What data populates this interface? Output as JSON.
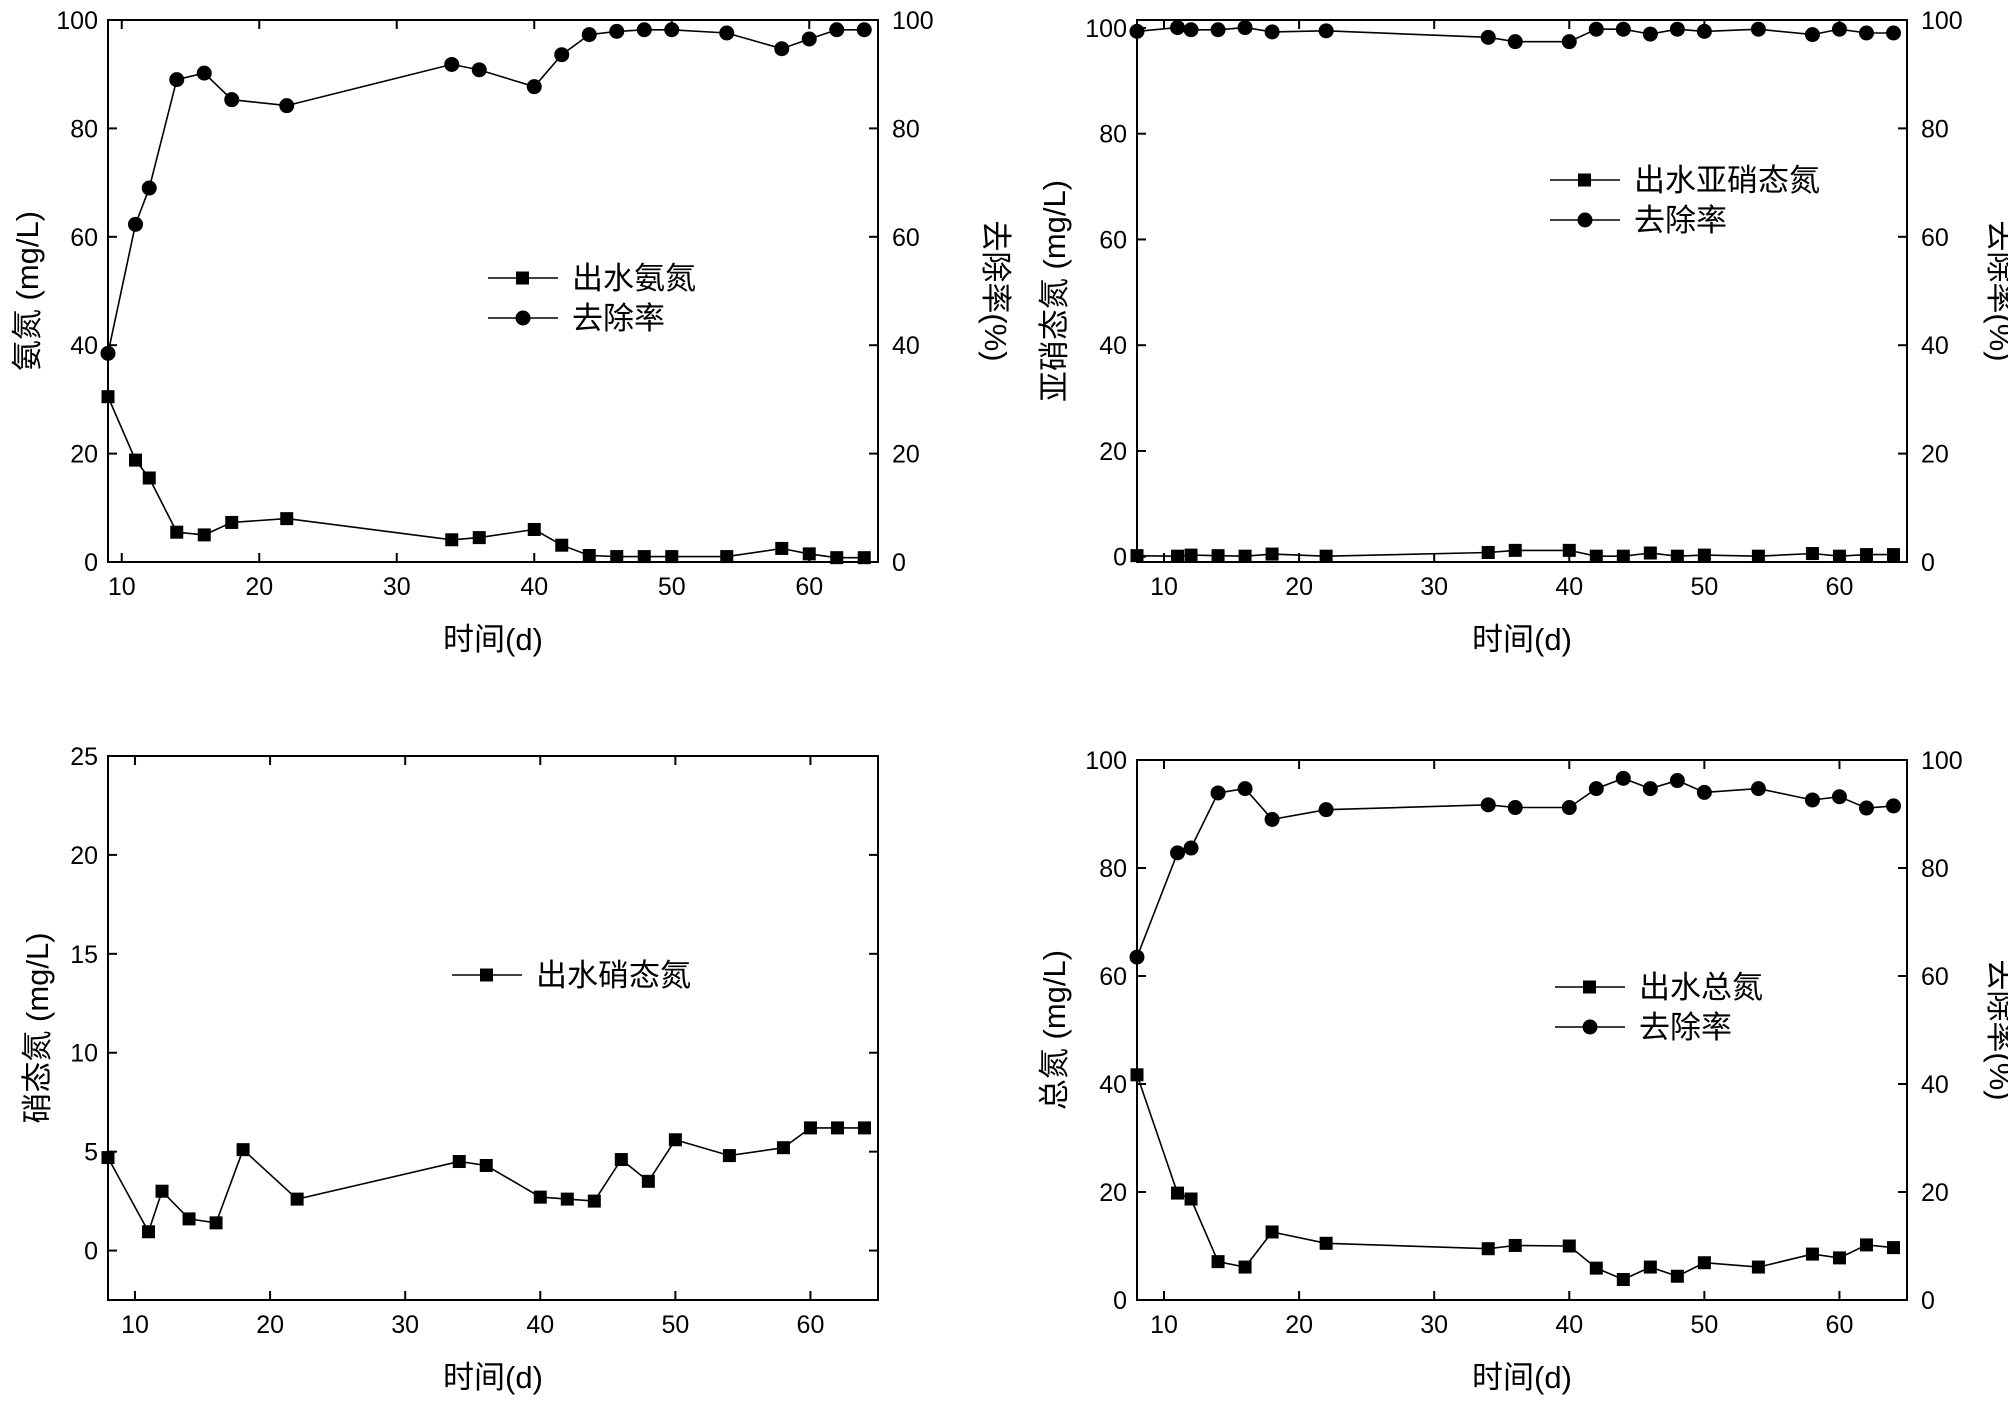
{
  "chart_data": [
    {
      "type": "line",
      "xlabel": "时间(d)",
      "ylabel": "氨氮 (mg/L)",
      "y2label": "去除率(%)",
      "xlim": [
        9,
        65
      ],
      "ylim": [
        0,
        100
      ],
      "y2lim": [
        0,
        100
      ],
      "xticks": [
        10,
        20,
        30,
        40,
        50,
        60
      ],
      "yticks": [
        0,
        20,
        40,
        60,
        80,
        100
      ],
      "y2ticks": [
        0,
        20,
        40,
        60,
        80,
        100
      ],
      "legend_position": "center",
      "series": [
        {
          "name": "出水氨氮",
          "marker": "square",
          "axis": "left",
          "x": [
            9,
            11,
            12,
            14,
            16,
            18,
            22,
            34,
            36,
            40,
            42,
            44,
            46,
            48,
            50,
            54,
            58,
            60,
            62,
            64
          ],
          "y": [
            30.5,
            18.8,
            15.5,
            5.5,
            5.0,
            7.3,
            8.0,
            4.1,
            4.5,
            6.0,
            3.1,
            1.2,
            1.0,
            1.0,
            1.0,
            1.0,
            2.5,
            1.5,
            0.8,
            0.8
          ]
        },
        {
          "name": "去除率",
          "marker": "circle",
          "axis": "right",
          "x": [
            9,
            11,
            12,
            14,
            16,
            18,
            22,
            34,
            36,
            40,
            42,
            44,
            46,
            48,
            50,
            54,
            58,
            60,
            62,
            64
          ],
          "y": [
            38.5,
            62.3,
            69.0,
            89.0,
            90.2,
            85.3,
            84.2,
            91.8,
            90.8,
            87.7,
            93.6,
            97.3,
            97.9,
            98.2,
            98.2,
            97.6,
            94.7,
            96.5,
            98.2,
            98.2
          ]
        }
      ]
    },
    {
      "type": "line",
      "xlabel": "时间(d)",
      "ylabel": "亚硝态氮 (mg/L)",
      "y2label": "去除率(%)",
      "xlim": [
        8,
        65
      ],
      "ylim": [
        -1,
        101.5
      ],
      "y2lim": [
        0,
        100
      ],
      "xticks": [
        10,
        20,
        30,
        40,
        50,
        60
      ],
      "yticks": [
        0,
        20,
        40,
        60,
        80,
        100
      ],
      "y2ticks": [
        0,
        20,
        40,
        60,
        80,
        100
      ],
      "legend_position": "upper-right",
      "series": [
        {
          "name": "出水亚硝态氮",
          "marker": "square",
          "axis": "left",
          "x": [
            8,
            11,
            12,
            14,
            16,
            18,
            22,
            34,
            36,
            40,
            42,
            44,
            46,
            48,
            50,
            54,
            58,
            60,
            62,
            64
          ],
          "y": [
            0.2,
            0.1,
            0.3,
            0.2,
            0.1,
            0.5,
            0.1,
            0.8,
            1.2,
            1.2,
            0.1,
            0.1,
            0.7,
            0.1,
            0.3,
            0.1,
            0.6,
            0.1,
            0.4,
            0.4
          ]
        },
        {
          "name": "去除率",
          "marker": "circle",
          "axis": "right",
          "x": [
            8,
            11,
            12,
            14,
            16,
            18,
            22,
            34,
            36,
            40,
            42,
            44,
            46,
            48,
            50,
            54,
            58,
            60,
            62,
            64
          ],
          "y": [
            97.9,
            98.6,
            98.2,
            98.2,
            98.6,
            97.8,
            98.0,
            96.8,
            96.0,
            96.0,
            98.3,
            98.3,
            97.4,
            98.3,
            97.9,
            98.3,
            97.3,
            98.3,
            97.6,
            97.6
          ]
        }
      ]
    },
    {
      "type": "line",
      "xlabel": "时间(d)",
      "ylabel": "硝态氮 (mg/L)",
      "xlim": [
        8,
        65
      ],
      "ylim": [
        -2.5,
        25
      ],
      "xticks": [
        10,
        20,
        30,
        40,
        50,
        60
      ],
      "yticks": [
        0,
        5,
        10,
        15,
        20,
        25
      ],
      "legend_position": "center",
      "series": [
        {
          "name": "出水硝态氮",
          "marker": "square",
          "axis": "left",
          "x": [
            8,
            11,
            12,
            14,
            16,
            18,
            22,
            34,
            36,
            40,
            42,
            44,
            46,
            48,
            50,
            54,
            58,
            60,
            62,
            64
          ],
          "y": [
            4.7,
            0.95,
            3.0,
            1.6,
            1.4,
            5.1,
            2.6,
            4.5,
            4.3,
            2.7,
            2.6,
            2.5,
            4.6,
            3.5,
            5.6,
            4.8,
            5.2,
            6.2,
            6.2,
            6.2
          ]
        }
      ]
    },
    {
      "type": "line",
      "xlabel": "时间(d)",
      "ylabel": "总氮 (mg/L)",
      "y2label": "去除率(%)",
      "xlim": [
        8,
        65
      ],
      "ylim": [
        0,
        100
      ],
      "y2lim": [
        0,
        100
      ],
      "xticks": [
        10,
        20,
        30,
        40,
        50,
        60
      ],
      "yticks": [
        0,
        20,
        40,
        60,
        80,
        100
      ],
      "y2ticks": [
        0,
        20,
        40,
        60,
        80,
        100
      ],
      "legend_position": "right",
      "series": [
        {
          "name": "出水总氮",
          "marker": "square",
          "axis": "left",
          "x": [
            8,
            11,
            12,
            14,
            16,
            18,
            22,
            34,
            36,
            40,
            42,
            44,
            46,
            48,
            50,
            54,
            58,
            60,
            62,
            64
          ],
          "y": [
            41.7,
            19.8,
            18.7,
            7.1,
            6.1,
            12.6,
            10.5,
            9.5,
            10.1,
            10.0,
            5.9,
            3.8,
            6.1,
            4.4,
            6.9,
            6.1,
            8.5,
            7.8,
            10.2,
            9.7
          ]
        },
        {
          "name": "去除率",
          "marker": "circle",
          "axis": "right",
          "x": [
            8,
            11,
            12,
            14,
            16,
            18,
            22,
            34,
            36,
            40,
            42,
            44,
            46,
            48,
            50,
            54,
            58,
            60,
            62,
            64
          ],
          "y": [
            63.5,
            82.8,
            83.7,
            93.9,
            94.7,
            89.0,
            90.8,
            91.7,
            91.2,
            91.2,
            94.7,
            96.6,
            94.7,
            96.2,
            94.0,
            94.7,
            92.6,
            93.2,
            91.1,
            91.5
          ]
        }
      ]
    }
  ]
}
